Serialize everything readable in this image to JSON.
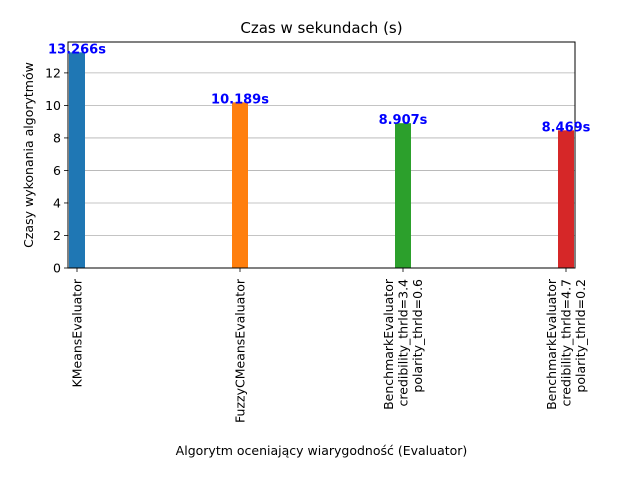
{
  "chart_data": {
    "type": "bar",
    "title": "Czas w sekundach (s)",
    "xlabel": "Algorytm oceniający wiarygodność (Evaluator)",
    "ylabel": "Czasy wykonania algorytmów",
    "ylim": [
      0,
      13.9
    ],
    "yticks": [
      0,
      2,
      4,
      6,
      8,
      10,
      12
    ],
    "grid": "horizontal",
    "categories": [
      [
        "KMeansEvaluator"
      ],
      [
        "FuzzyCMeansEvaluator"
      ],
      [
        "BenchmarkEvaluator",
        "credibility_thrld=3.4",
        "polarity_thrld=0.6"
      ],
      [
        "BenchmarkEvaluator",
        "credibility_thrld=4.7",
        "polarity_thrld=0.2"
      ]
    ],
    "values": [
      13.266,
      10.189,
      8.907,
      8.469
    ],
    "value_labels": [
      "13.266s",
      "10.189s",
      "8.907s",
      "8.469s"
    ],
    "colors": [
      "#1f77b4",
      "#ff7f0e",
      "#2ca02c",
      "#d62728"
    ],
    "value_label_color": "#0000ff"
  }
}
